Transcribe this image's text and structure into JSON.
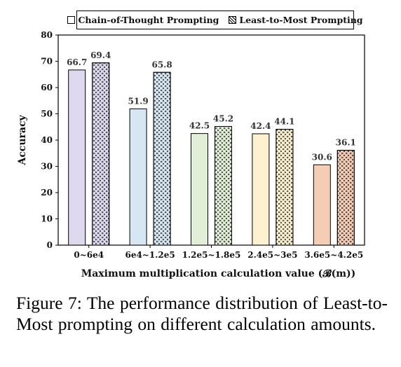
{
  "chart_data": {
    "type": "bar",
    "xlabel": "Maximum multiplication calculation value (𝓑(m))",
    "ylabel": "Accuracy",
    "ylim": [
      0,
      80
    ],
    "yticks": [
      0,
      10,
      20,
      30,
      40,
      50,
      60,
      70,
      80
    ],
    "grid": false,
    "legend_position": "top",
    "categories": [
      "0~6e4",
      "6e4~1.2e5",
      "1.2e5~1.8e5",
      "2.4e5~3e5",
      "3.6e5~4.2e5"
    ],
    "series": [
      {
        "name": "Chain-of-Thought Prompting",
        "pattern": "plain",
        "values": [
          66.7,
          51.9,
          42.5,
          42.4,
          30.6
        ],
        "labels": [
          "66.7",
          "51.9",
          "42.5",
          "42.4",
          "30.6"
        ]
      },
      {
        "name": "Least-to-Most Prompting",
        "pattern": "hatched",
        "values": [
          69.4,
          65.8,
          45.2,
          44.1,
          36.1
        ],
        "labels": [
          "69.4",
          "65.8",
          "45.2",
          "44.1",
          "36.1"
        ]
      }
    ],
    "category_colors": [
      "#ded9ee",
      "#d6e6f3",
      "#e1efd6",
      "#fdf1cf",
      "#f5cdb5"
    ]
  },
  "caption": "Figure 7:  The performance distribution of Least-to-Most prompting on different calculation amounts."
}
